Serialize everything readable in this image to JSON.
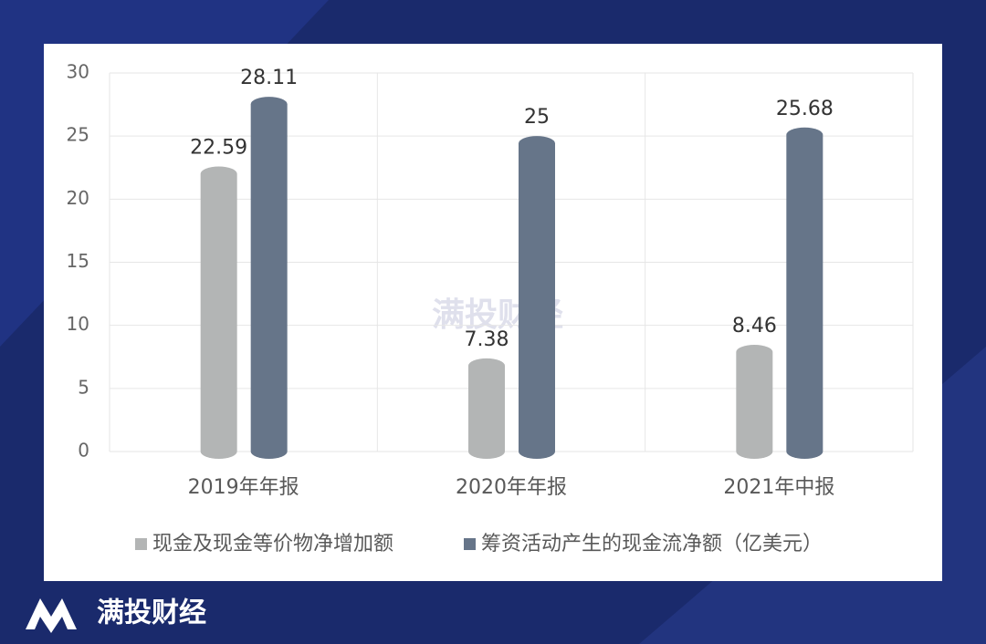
{
  "brand": "满投财经",
  "chart_data": {
    "type": "bar",
    "watermark": "满投财经",
    "categories": [
      "2019年年报",
      "2020年年报",
      "2021年中报"
    ],
    "series": [
      {
        "name": "现金及现金等价物净增加额",
        "color": "#b3b5b5",
        "values": [
          22.59,
          7.38,
          8.46
        ]
      },
      {
        "name": "筹资活动产生的现金流净额（亿美元）",
        "color": "#667589",
        "values": [
          28.11,
          25,
          25.68
        ]
      }
    ],
    "ylim": [
      0,
      30
    ],
    "yticks": [
      0,
      5,
      10,
      15,
      20,
      25,
      30
    ],
    "grid": true,
    "legend": "bottom"
  }
}
